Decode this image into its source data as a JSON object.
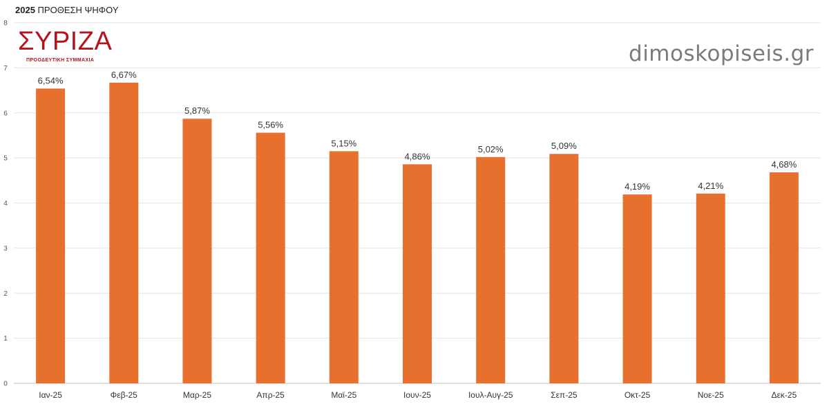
{
  "header": {
    "title_year": "2025",
    "title_text": "ΠΡΟΘΕΣΗ ΨΗΦΟΥ"
  },
  "logo": {
    "name": "ΣΥΡΙΖΑ",
    "subtitle": "ΠΡΟΟΔΕΥΤΙΚΗ ΣΥΜΜΑΧΙΑ"
  },
  "watermark": "dimoskopiseis.gr",
  "colors": {
    "bar": "#e8702e",
    "grid": "#e2e2e2",
    "axis": "#bfbfbf",
    "text": "#333333",
    "logo": "#b5121b"
  },
  "chart_data": {
    "type": "bar",
    "categories": [
      "Ιαν-25",
      "Φεβ-25",
      "Μαρ-25",
      "Απρ-25",
      "Μαϊ-25",
      "Ιουν-25",
      "Ιουλ-Αυγ-25",
      "Σεπ-25",
      "Οκτ-25",
      "Νοε-25",
      "Δεκ-25"
    ],
    "values": [
      6.54,
      6.67,
      5.87,
      5.56,
      5.15,
      4.86,
      5.02,
      5.09,
      4.19,
      4.21,
      4.68
    ],
    "data_labels": [
      "6,54%",
      "6,67%",
      "5,87%",
      "5,56%",
      "5,15%",
      "4,86%",
      "5,02%",
      "5,09%",
      "4,19%",
      "4,21%",
      "4,68%"
    ],
    "title": "2025 ΠΡΟΘΕΣΗ ΨΗΦΟΥ",
    "xlabel": "",
    "ylabel": "",
    "ylim": [
      0,
      8
    ],
    "yticks": [
      0,
      1,
      2,
      3,
      4,
      5,
      6,
      7,
      8
    ],
    "grid": true,
    "legend": "none"
  }
}
